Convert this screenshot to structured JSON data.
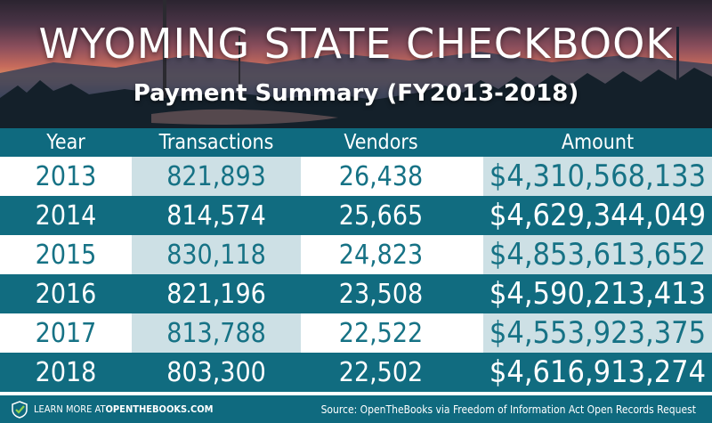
{
  "title": "WYOMING STATE CHECKBOOK",
  "subtitle": "Payment Summary (FY2013-2018)",
  "table": {
    "headers": {
      "year": "Year",
      "transactions": "Transactions",
      "vendors": "Vendors",
      "amount": "Amount"
    },
    "rows": [
      {
        "year": "2013",
        "transactions": "821,893",
        "vendors": "26,438",
        "amount": "$4,310,568,133"
      },
      {
        "year": "2014",
        "transactions": "814,574",
        "vendors": "25,665",
        "amount": "$4,629,344,049"
      },
      {
        "year": "2015",
        "transactions": "830,118",
        "vendors": "24,823",
        "amount": "$4,853,613,652"
      },
      {
        "year": "2016",
        "transactions": "821,196",
        "vendors": "23,508",
        "amount": "$4,590,213,413"
      },
      {
        "year": "2017",
        "transactions": "813,788",
        "vendors": "22,522",
        "amount": "$4,553,923,375"
      },
      {
        "year": "2018",
        "transactions": "803,300",
        "vendors": "22,502",
        "amount": "$4,616,913,274"
      }
    ]
  },
  "footer": {
    "learn_more_prefix": "LEARN MORE AT ",
    "learn_more_site": "OPENTHEBOOKS.COM",
    "source": "Source: OpenTheBooks via Freedom of Information Act Open Records Request"
  },
  "colors": {
    "teal_dark": "#116c80",
    "teal_light": "#cde0e5",
    "text_teal": "#167285"
  }
}
